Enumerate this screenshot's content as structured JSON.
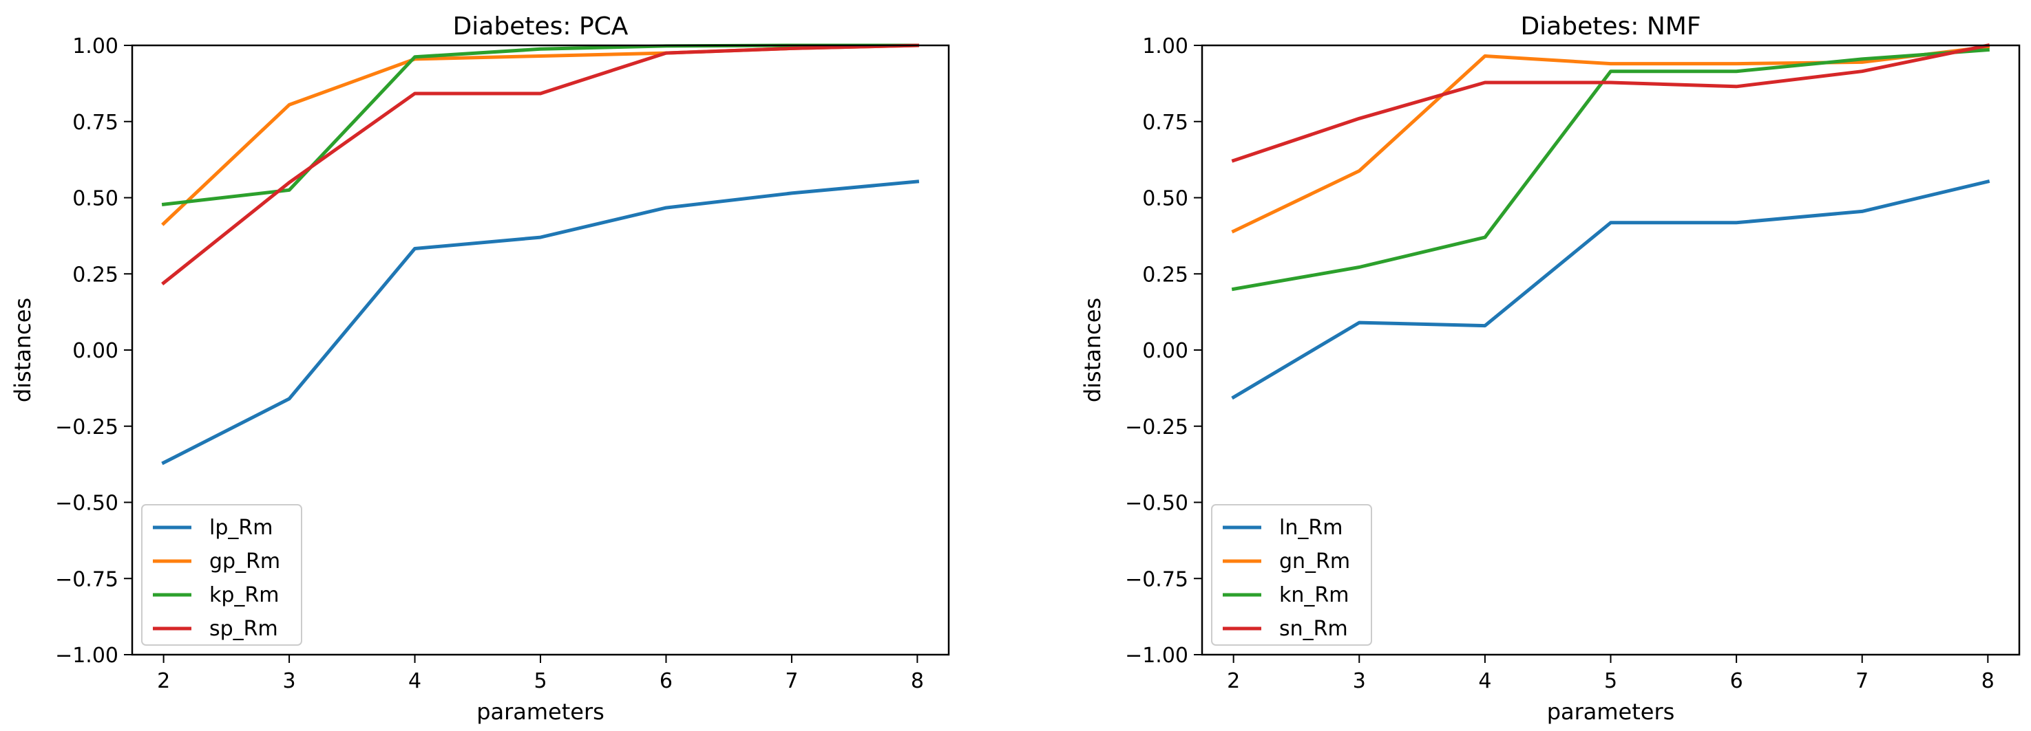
{
  "chart_data": [
    {
      "type": "line",
      "title": "Diabetes: PCA",
      "xlabel": "parameters",
      "ylabel": "distances",
      "x": [
        2,
        3,
        4,
        5,
        6,
        7,
        8
      ],
      "xlim": [
        1.75,
        8.25
      ],
      "ylim": [
        -1.0,
        1.0
      ],
      "xticks": [
        "2",
        "3",
        "4",
        "5",
        "6",
        "7",
        "8"
      ],
      "yticks": [
        "1.00",
        "0.75",
        "0.50",
        "0.25",
        "0.00",
        "−0.25",
        "−0.50",
        "−0.75",
        "−1.00"
      ],
      "legend_loc": "lower-left",
      "series": [
        {
          "name": "lp_Rm",
          "color": "#1f77b4",
          "values": [
            -0.37,
            -0.16,
            0.333,
            0.37,
            0.467,
            0.515,
            0.553
          ]
        },
        {
          "name": "gp_Rm",
          "color": "#ff7f0e",
          "values": [
            0.415,
            0.805,
            0.955,
            0.965,
            0.975,
            0.99,
            1.0
          ]
        },
        {
          "name": "kp_Rm",
          "color": "#2ca02c",
          "values": [
            0.478,
            0.525,
            0.962,
            0.988,
            0.998,
            1.0,
            1.0
          ]
        },
        {
          "name": "sp_Rm",
          "color": "#d62728",
          "values": [
            0.22,
            0.55,
            0.842,
            0.842,
            0.975,
            0.99,
            1.0
          ]
        }
      ]
    },
    {
      "type": "line",
      "title": "Diabetes: NMF",
      "xlabel": "parameters",
      "ylabel": "distances",
      "x": [
        2,
        3,
        4,
        5,
        6,
        7,
        8
      ],
      "xlim": [
        1.75,
        8.25
      ],
      "ylim": [
        -1.0,
        1.0
      ],
      "xticks": [
        "2",
        "3",
        "4",
        "5",
        "6",
        "7",
        "8"
      ],
      "yticks": [
        "1.00",
        "0.75",
        "0.50",
        "0.25",
        "0.00",
        "−0.25",
        "−0.50",
        "−0.75",
        "−1.00"
      ],
      "legend_loc": "lower-left",
      "series": [
        {
          "name": "ln_Rm",
          "color": "#1f77b4",
          "values": [
            -0.155,
            0.09,
            0.08,
            0.418,
            0.418,
            0.455,
            0.553
          ]
        },
        {
          "name": "gn_Rm",
          "color": "#ff7f0e",
          "values": [
            0.39,
            0.588,
            0.965,
            0.94,
            0.94,
            0.945,
            0.995
          ]
        },
        {
          "name": "kn_Rm",
          "color": "#2ca02c",
          "values": [
            0.2,
            0.272,
            0.37,
            0.915,
            0.915,
            0.955,
            0.985
          ]
        },
        {
          "name": "sn_Rm",
          "color": "#d62728",
          "values": [
            0.622,
            0.76,
            0.878,
            0.878,
            0.865,
            0.915,
            1.0
          ]
        }
      ]
    }
  ]
}
